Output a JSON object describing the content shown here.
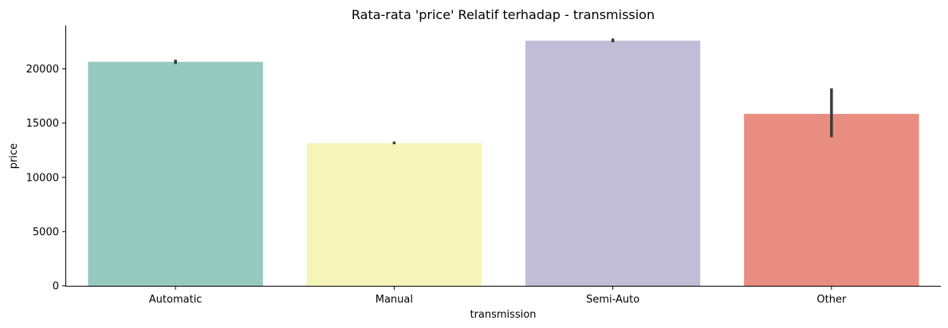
{
  "chart_data": {
    "type": "bar",
    "title": "Rata-rata 'price' Relatif terhadap - transmission",
    "xlabel": "transmission",
    "ylabel": "price",
    "categories": [
      "Automatic",
      "Manual",
      "Semi-Auto",
      "Other"
    ],
    "values": [
      20650,
      13150,
      22600,
      15850
    ],
    "error_low": [
      20450,
      13050,
      22450,
      13700
    ],
    "error_high": [
      20850,
      13300,
      22800,
      18200
    ],
    "colors": [
      "#96c9c0",
      "#f5f5b9",
      "#c1bdd6",
      "#ea8d81"
    ],
    "error_color": "#3c3c3c",
    "ylim": [
      0,
      24000
    ],
    "yticks": [
      0,
      5000,
      10000,
      15000,
      20000
    ],
    "grid": false,
    "legend": "none"
  }
}
